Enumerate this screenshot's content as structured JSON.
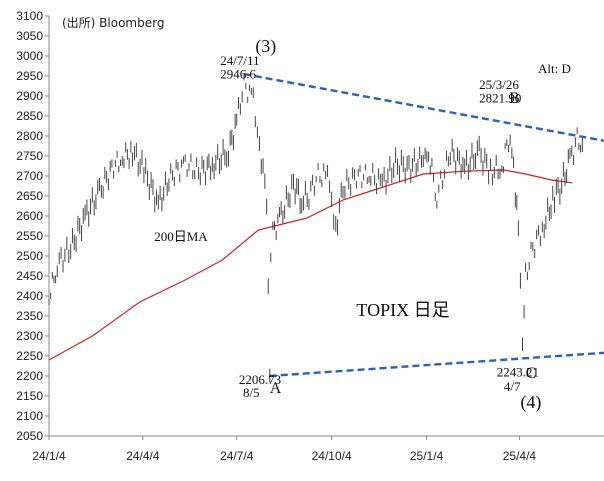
{
  "chart_data": {
    "type": "line",
    "title": "TOPIX 日足",
    "source": "(出所) Bloomberg",
    "alt_label": "Alt: D",
    "y_ticks": [
      3100,
      3050,
      3000,
      2950,
      2900,
      2850,
      2800,
      2750,
      2700,
      2650,
      2600,
      2550,
      2500,
      2450,
      2400,
      2350,
      2300,
      2250,
      2200,
      2150,
      2100,
      2050
    ],
    "ylim": [
      2050,
      3100
    ],
    "x_ticks": [
      "24/1/4",
      "24/4/4",
      "24/7/4",
      "24/10/4",
      "25/1/4",
      "25/4/4"
    ],
    "x_tick_dates": [
      "2024-01-04",
      "2024-04-04",
      "2024-07-04",
      "2024-10-04",
      "2025-01-04",
      "2025-04-04"
    ],
    "xlim": [
      "2024-01-04",
      "2025-06-25"
    ],
    "series": [
      {
        "name": "200日MA",
        "color": "#d42020",
        "points": [
          [
            "2024-01-04",
            2240
          ],
          [
            "2024-02-15",
            2300
          ],
          [
            "2024-04-01",
            2385
          ],
          [
            "2024-05-15",
            2440
          ],
          [
            "2024-06-20",
            2490
          ],
          [
            "2024-07-25",
            2565
          ],
          [
            "2024-09-10",
            2595
          ],
          [
            "2024-10-15",
            2640
          ],
          [
            "2024-11-20",
            2670
          ],
          [
            "2025-01-01",
            2705
          ],
          [
            "2025-02-10",
            2712
          ],
          [
            "2025-03-20",
            2715
          ],
          [
            "2025-04-10",
            2705
          ],
          [
            "2025-05-05",
            2690
          ],
          [
            "2025-05-25",
            2683
          ]
        ]
      },
      {
        "name": "",
        "color": "#333333",
        "kind": "candles",
        "points": [
          [
            "2024-01-04",
            2395
          ],
          [
            "2024-01-12",
            2480
          ],
          [
            "2024-01-25",
            2520
          ],
          [
            "2024-02-08",
            2600
          ],
          [
            "2024-02-22",
            2660
          ],
          [
            "2024-03-05",
            2720
          ],
          [
            "2024-03-15",
            2745
          ],
          [
            "2024-03-25",
            2760
          ],
          [
            "2024-04-05",
            2715
          ],
          [
            "2024-04-19",
            2630
          ],
          [
            "2024-05-01",
            2700
          ],
          [
            "2024-05-15",
            2730
          ],
          [
            "2024-05-28",
            2710
          ],
          [
            "2024-06-12",
            2730
          ],
          [
            "2024-06-26",
            2760
          ],
          [
            "2024-07-04",
            2840
          ],
          [
            "2024-07-11",
            2930
          ],
          [
            "2024-07-20",
            2890
          ],
          [
            "2024-07-26",
            2780
          ],
          [
            "2024-08-02",
            2640
          ],
          [
            "2024-08-05",
            2220
          ],
          [
            "2024-08-06",
            2500
          ],
          [
            "2024-08-08",
            2560
          ],
          [
            "2024-08-16",
            2600
          ],
          [
            "2024-08-28",
            2680
          ],
          [
            "2024-09-05",
            2640
          ],
          [
            "2024-09-12",
            2650
          ],
          [
            "2024-09-19",
            2700
          ],
          [
            "2024-09-30",
            2700
          ],
          [
            "2024-10-04",
            2620
          ],
          [
            "2024-10-08",
            2570
          ],
          [
            "2024-10-15",
            2670
          ],
          [
            "2024-10-28",
            2700
          ],
          [
            "2024-11-11",
            2700
          ],
          [
            "2024-11-22",
            2680
          ],
          [
            "2024-12-05",
            2730
          ],
          [
            "2024-12-18",
            2720
          ],
          [
            "2025-01-06",
            2755
          ],
          [
            "2025-01-14",
            2650
          ],
          [
            "2025-01-27",
            2760
          ],
          [
            "2025-02-10",
            2720
          ],
          [
            "2025-02-24",
            2760
          ],
          [
            "2025-03-07",
            2710
          ],
          [
            "2025-03-18",
            2720
          ],
          [
            "2025-03-26",
            2810
          ],
          [
            "2025-03-31",
            2660
          ],
          [
            "2025-04-03",
            2570
          ],
          [
            "2025-04-07",
            2260
          ],
          [
            "2025-04-10",
            2450
          ],
          [
            "2025-04-17",
            2520
          ],
          [
            "2025-04-28",
            2580
          ],
          [
            "2025-05-08",
            2650
          ],
          [
            "2025-05-15",
            2680
          ],
          [
            "2025-05-23",
            2740
          ],
          [
            "2025-05-30",
            2790
          ],
          [
            "2025-06-04",
            2780
          ]
        ]
      }
    ],
    "trendlines": [
      {
        "color": "#2c5fbf",
        "from": [
          "2024-07-11",
          2955
        ],
        "to": [
          "2025-06-25",
          2788
        ]
      },
      {
        "color": "#2c5fbf",
        "from": [
          "2024-08-05",
          2200
        ],
        "to": [
          "2025-06-25",
          2258
        ]
      }
    ],
    "annotations": [
      {
        "text": "(3)",
        "at": [
          "2024-07-22",
          3010
        ],
        "size": 18
      },
      {
        "text": "24/7/11",
        "at": [
          "2024-06-18",
          2978
        ],
        "size": 13
      },
      {
        "text": "2946.6",
        "at": [
          "2024-06-18",
          2944
        ],
        "size": 13
      },
      {
        "text": "25/3/26",
        "at": [
          "2025-02-24",
          2918
        ],
        "size": 13
      },
      {
        "text": "2821.90",
        "at": [
          "2025-02-24",
          2884
        ],
        "size": 13
      },
      {
        "text": "B",
        "at": [
          "2025-03-25",
          2883
        ],
        "size": 16
      },
      {
        "text": "2206.73",
        "at": [
          "2024-07-06",
          2180
        ],
        "size": 13
      },
      {
        "text": "8/5",
        "at": [
          "2024-07-10",
          2148
        ],
        "size": 13
      },
      {
        "text": "A",
        "at": [
          "2024-08-05",
          2158
        ],
        "size": 16
      },
      {
        "text": "2243.21",
        "at": [
          "2025-03-13",
          2199
        ],
        "size": 13
      },
      {
        "text": "4/7",
        "at": [
          "2025-03-20",
          2162
        ],
        "size": 13
      },
      {
        "text": "C",
        "at": [
          "2025-04-10",
          2195
        ],
        "size": 16
      },
      {
        "text": "(4)",
        "at": [
          "2025-04-05",
          2120
        ],
        "size": 18
      },
      {
        "text": "200日MA",
        "color": "#d42020",
        "at": [
          "2024-04-15",
          2538
        ],
        "size": 13
      },
      {
        "text": "TOPIX 日足",
        "at": [
          "2024-10-28",
          2350
        ],
        "size": 18
      }
    ],
    "grid": false,
    "legend": "none"
  }
}
